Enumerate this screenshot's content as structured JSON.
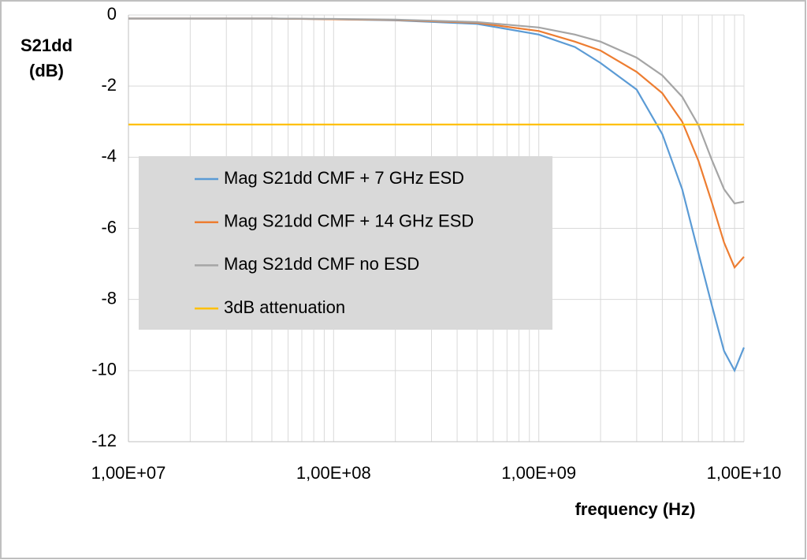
{
  "chart_data": {
    "type": "line",
    "ylabel": "S21dd (dB)",
    "xlabel": "frequency (Hz)",
    "xscale": "log",
    "xlim": [
      10000000.0,
      10000000000.0
    ],
    "xticks": [
      {
        "value": 10000000.0,
        "label": "1,00E+07"
      },
      {
        "value": 100000000.0,
        "label": "1,00E+08"
      },
      {
        "value": 1000000000.0,
        "label": "1,00E+09"
      },
      {
        "value": 10000000000.0,
        "label": "1,00E+10"
      }
    ],
    "ylim": [
      -12,
      0
    ],
    "yticks": [
      0,
      -2,
      -4,
      -6,
      -8,
      -10,
      -12
    ],
    "grid": true,
    "minor_grid": true,
    "legend": "left",
    "series": [
      {
        "name": "Mag S21dd CMF + 7 GHz ESD",
        "color": "#5b9bd5",
        "x": [
          10000000.0,
          20000000.0,
          50000000.0,
          100000000.0,
          200000000.0,
          500000000.0,
          1000000000.0,
          1500000000.0,
          2000000000.0,
          3000000000.0,
          4000000000.0,
          5000000000.0,
          6000000000.0,
          7000000000.0,
          8000000000.0,
          9000000000.0,
          10000000000.0
        ],
        "values": [
          -0.1,
          -0.1,
          -0.1,
          -0.12,
          -0.15,
          -0.25,
          -0.55,
          -0.9,
          -1.35,
          -2.1,
          -3.35,
          -4.9,
          -6.7,
          -8.2,
          -9.45,
          -10.0,
          -9.35
        ]
      },
      {
        "name": "Mag S21dd CMF + 14 GHz ESD",
        "color": "#ed7d31",
        "x": [
          10000000.0,
          20000000.0,
          50000000.0,
          100000000.0,
          200000000.0,
          500000000.0,
          1000000000.0,
          1500000000.0,
          2000000000.0,
          3000000000.0,
          4000000000.0,
          5000000000.0,
          6000000000.0,
          7000000000.0,
          8000000000.0,
          9000000000.0,
          10000000000.0
        ],
        "values": [
          -0.1,
          -0.1,
          -0.1,
          -0.12,
          -0.14,
          -0.22,
          -0.45,
          -0.75,
          -1.0,
          -1.6,
          -2.2,
          -3.0,
          -4.1,
          -5.3,
          -6.4,
          -7.1,
          -6.8
        ]
      },
      {
        "name": "Mag S21dd CMF no ESD",
        "color": "#a5a5a5",
        "x": [
          10000000.0,
          20000000.0,
          50000000.0,
          100000000.0,
          200000000.0,
          500000000.0,
          1000000000.0,
          1500000000.0,
          2000000000.0,
          3000000000.0,
          4000000000.0,
          5000000000.0,
          6000000000.0,
          7000000000.0,
          8000000000.0,
          9000000000.0,
          10000000000.0
        ],
        "values": [
          -0.1,
          -0.1,
          -0.1,
          -0.11,
          -0.13,
          -0.2,
          -0.35,
          -0.55,
          -0.75,
          -1.2,
          -1.7,
          -2.3,
          -3.1,
          -4.1,
          -4.9,
          -5.3,
          -5.25
        ]
      },
      {
        "name": "3dB attenuation",
        "color": "#ffc000",
        "x": [
          10000000.0,
          10000000000.0
        ],
        "values": [
          -3.08,
          -3.08
        ]
      }
    ]
  }
}
